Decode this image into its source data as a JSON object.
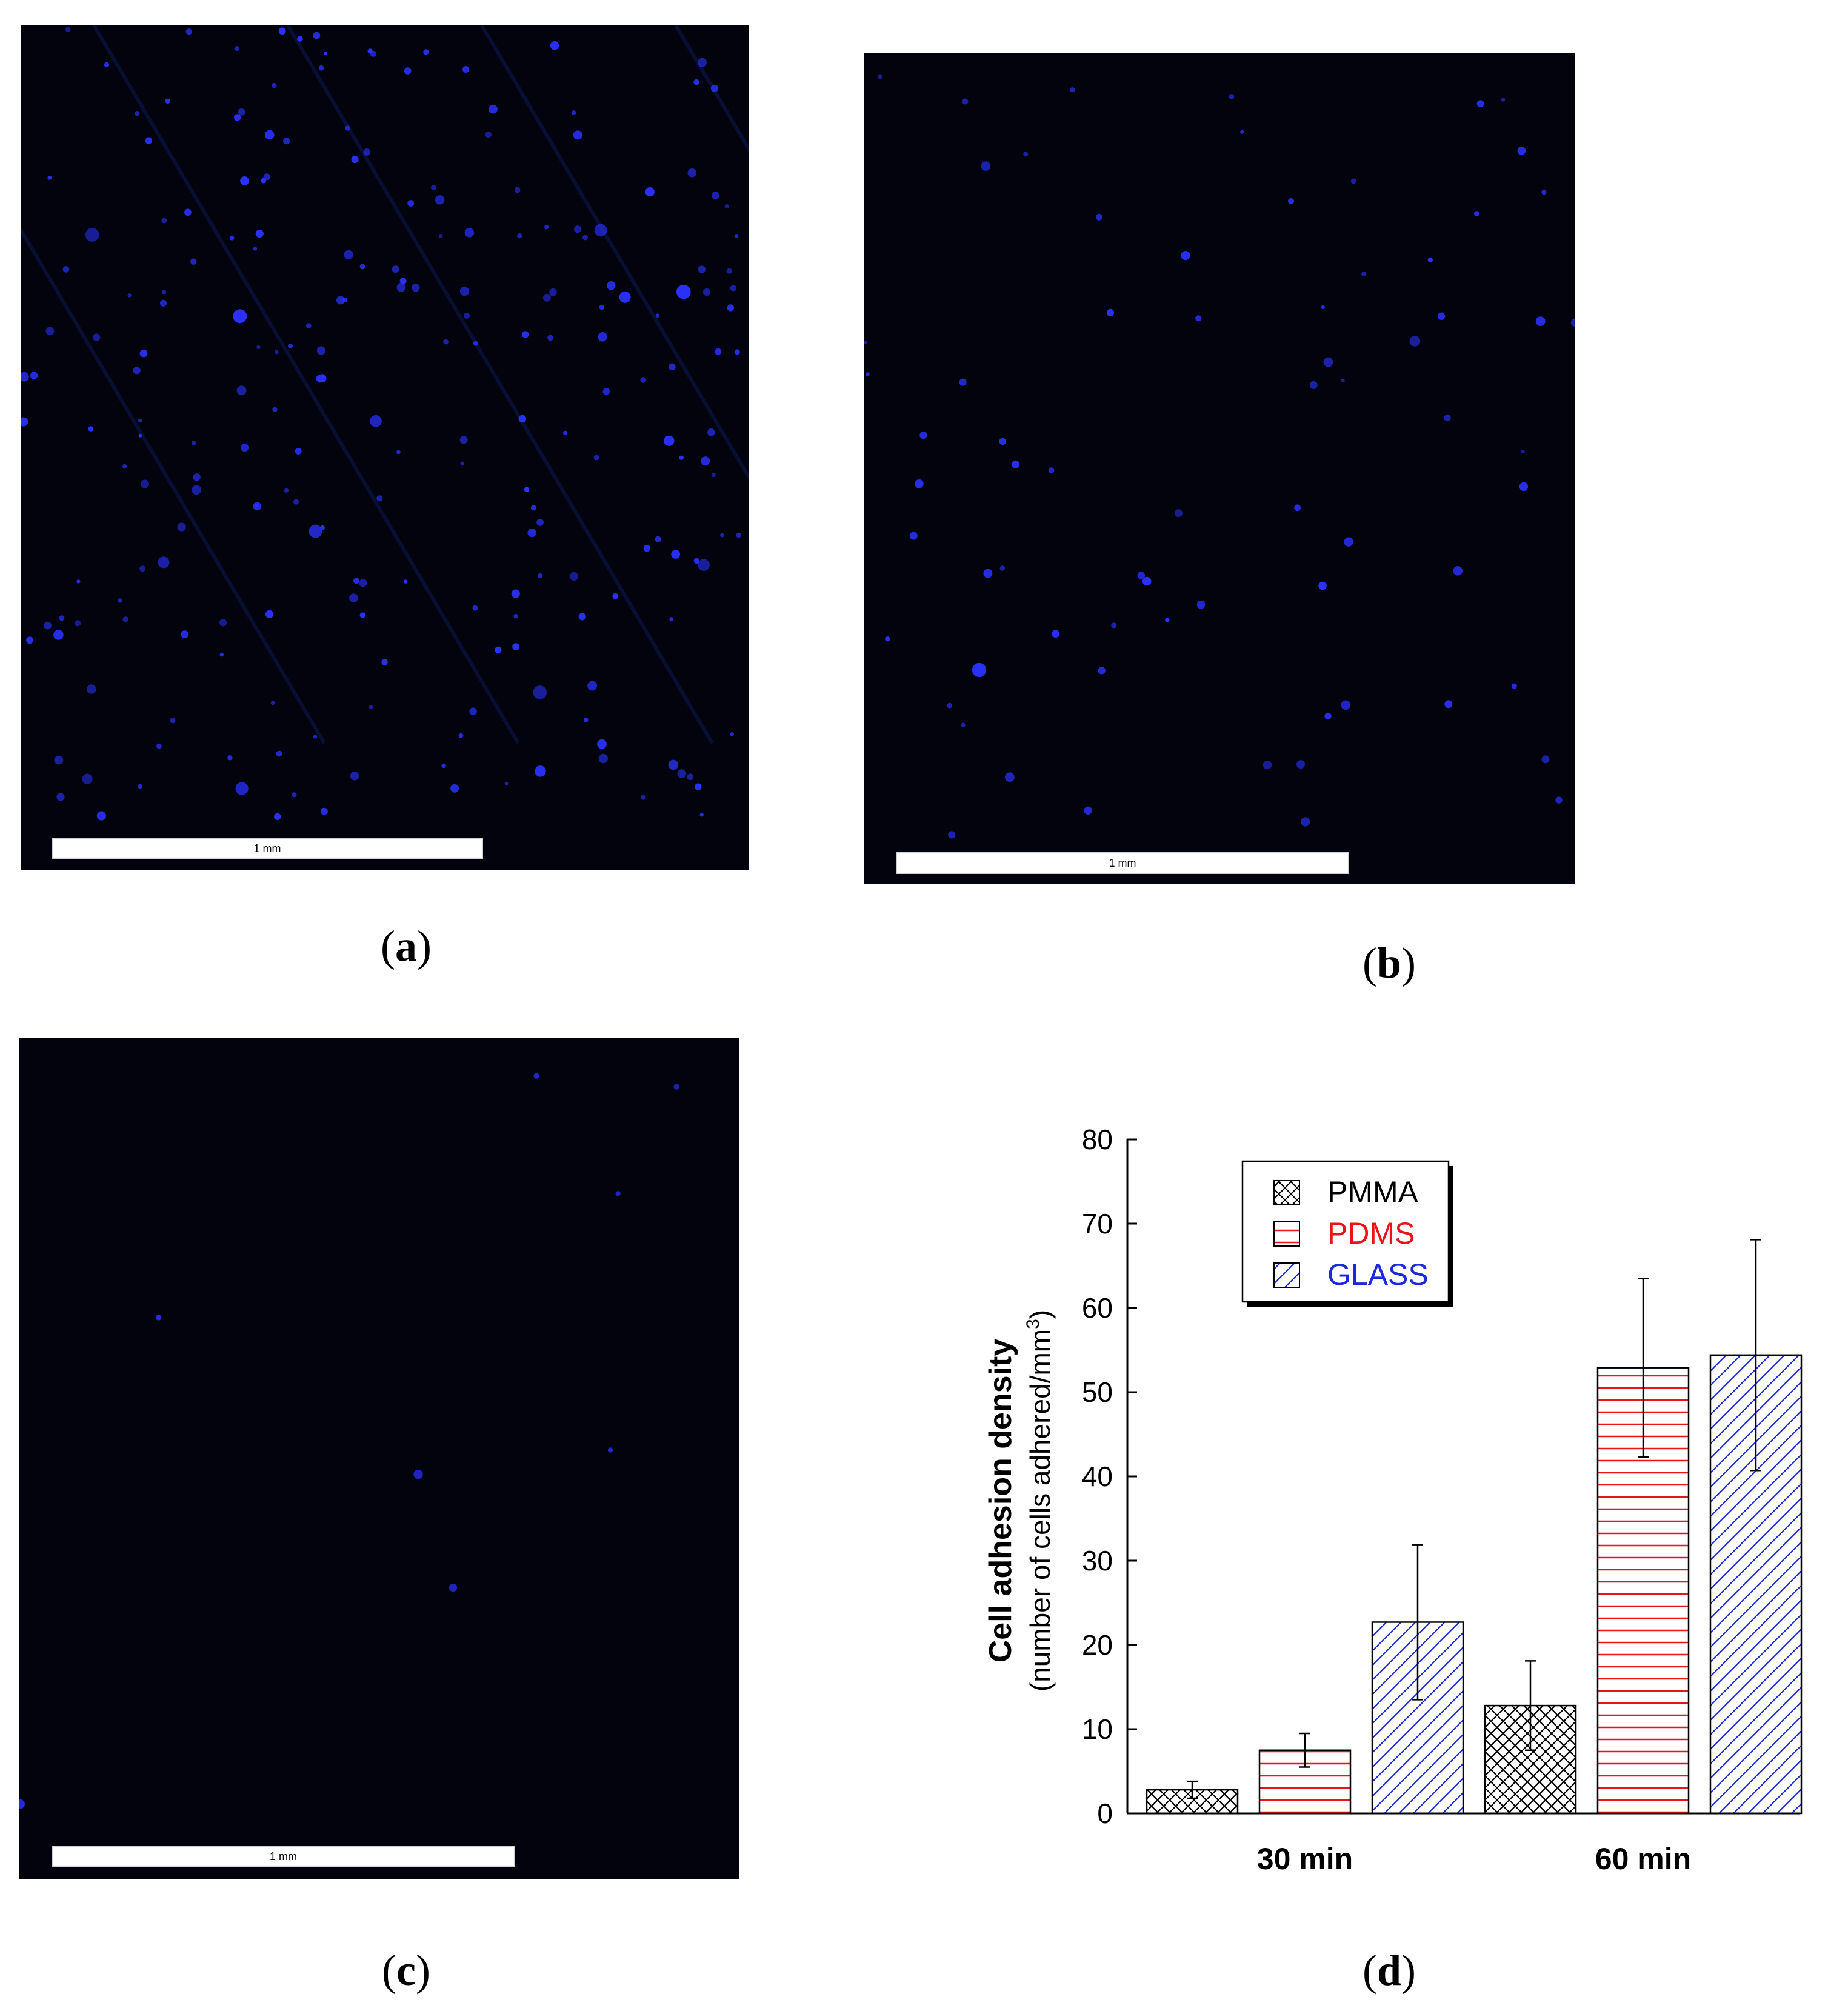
{
  "panels": {
    "a": {
      "label_open": "(",
      "letter": "a",
      "label_close": ")",
      "scalebar_text": "1 mm"
    },
    "b": {
      "label_open": "(",
      "letter": "b",
      "label_close": ")",
      "scalebar_text": "1 mm"
    },
    "c": {
      "label_open": "(",
      "letter": "c",
      "label_close": ")",
      "scalebar_text": "1 mm"
    },
    "d": {
      "label_open": "(",
      "letter": "d",
      "label_close": ")"
    }
  },
  "colors": {
    "micro_bg": "#02030c",
    "cell_blue": "#2a32ff",
    "stripe_blue": "#101a55",
    "pmma": "#000000",
    "pdms": "#e8141a",
    "glass": "#1a2ad8"
  },
  "micrographs": {
    "a": {
      "cell_density": "high",
      "cells_approx": 220
    },
    "b": {
      "cell_density": "medium",
      "cells_approx": 70
    },
    "c": {
      "cell_density": "very-low",
      "cells_approx": 8
    }
  },
  "chart_data": {
    "type": "bar",
    "categories": [
      "30 min",
      "60 min"
    ],
    "series": [
      {
        "name": "PMMA",
        "values": [
          2.8,
          12.8
        ],
        "errors": [
          1.0,
          5.3
        ],
        "pattern": "crosshatch",
        "color": "#000000"
      },
      {
        "name": "PDMS",
        "values": [
          7.5,
          52.9
        ],
        "errors": [
          2.0,
          10.6
        ],
        "pattern": "horizontal",
        "color": "#e8141a"
      },
      {
        "name": "GLASS",
        "values": [
          22.7,
          54.4
        ],
        "errors": [
          9.2,
          13.7
        ],
        "pattern": "diagonal",
        "color": "#1a2ad8"
      }
    ],
    "ylabel_main": "Cell adhesion density",
    "ylabel_sub": "(number of cells adhered/mm",
    "ylabel_sup": "3",
    "ylabel_end": ")",
    "ylim": [
      0,
      80
    ],
    "yticks": [
      0,
      10,
      20,
      30,
      40,
      50,
      60,
      70,
      80
    ],
    "legend_position": "top-left",
    "grid": false
  }
}
